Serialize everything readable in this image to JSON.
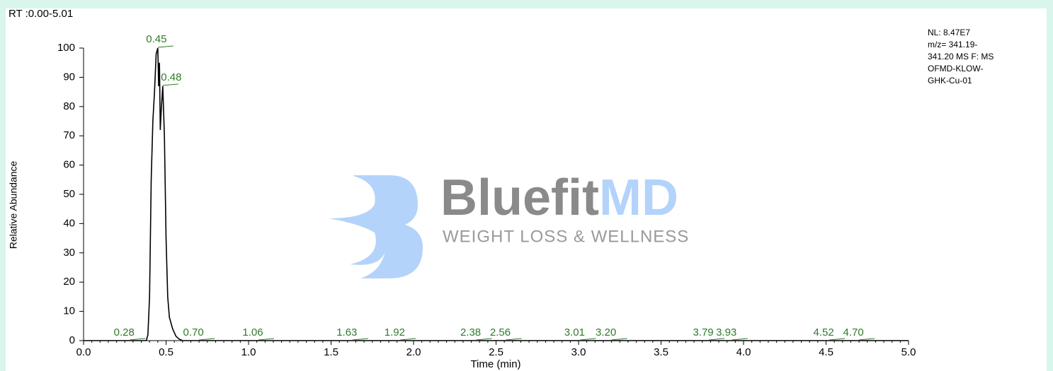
{
  "chart_data": {
    "type": "line",
    "header": "RT :0.00-5.01",
    "info": [
      "NL: 8.47E7",
      "m/z= 341.19-",
      "341.20 MS  F: MS",
      "OFMD-KLOW-",
      "GHK-Cu-01"
    ],
    "watermark": {
      "brand_a": "Bluefit",
      "brand_b": "MD",
      "tagline": "WEIGHT LOSS & WELLNESS"
    },
    "xlabel": "Time (min)",
    "ylabel": "Relative Abundance",
    "color": "#000000",
    "annotation_color": "#2f7a2a",
    "x": [
      0,
      0.38,
      0.39,
      0.4,
      0.41,
      0.42,
      0.43,
      0.44,
      0.45,
      0.455,
      0.46,
      0.465,
      0.47,
      0.48,
      0.49,
      0.5,
      0.51,
      0.52,
      0.54,
      0.56,
      0.58,
      0.6,
      5.0
    ],
    "values": [
      0,
      0,
      2,
      15,
      55,
      75,
      85,
      98,
      100,
      87,
      95,
      72,
      78,
      87,
      70,
      35,
      15,
      8,
      4,
      1.5,
      0.5,
      0,
      0
    ],
    "annotations": [
      {
        "x": 0.45,
        "y": 100,
        "label": "0.45"
      },
      {
        "x": 0.48,
        "y": 87,
        "label": "0.48"
      },
      {
        "x": 0.28,
        "y": 0,
        "label": "0.28"
      },
      {
        "x": 0.7,
        "y": 0,
        "label": "0.70"
      },
      {
        "x": 1.06,
        "y": 0,
        "label": "1.06"
      },
      {
        "x": 1.63,
        "y": 0,
        "label": "1.63"
      },
      {
        "x": 1.92,
        "y": 0,
        "label": "1.92"
      },
      {
        "x": 2.38,
        "y": 0,
        "label": "2.38"
      },
      {
        "x": 2.56,
        "y": 0,
        "label": "2.56"
      },
      {
        "x": 3.01,
        "y": 0,
        "label": "3.01"
      },
      {
        "x": 3.2,
        "y": 0,
        "label": "3.20"
      },
      {
        "x": 3.79,
        "y": 0,
        "label": "3.79"
      },
      {
        "x": 3.93,
        "y": 0,
        "label": "3.93"
      },
      {
        "x": 4.52,
        "y": 0,
        "label": "4.52"
      },
      {
        "x": 4.7,
        "y": 0,
        "label": "4.70"
      }
    ],
    "xlim": [
      0,
      5
    ],
    "ylim": [
      0,
      100
    ],
    "xticks": [
      {
        "value": 0,
        "label": "0.0"
      },
      {
        "value": 0.5,
        "label": "0.5"
      },
      {
        "value": 1,
        "label": "1.0"
      },
      {
        "value": 1.5,
        "label": "1.5"
      },
      {
        "value": 2,
        "label": "2.0"
      },
      {
        "value": 2.5,
        "label": "2.5"
      },
      {
        "value": 3,
        "label": "3.0"
      },
      {
        "value": 3.5,
        "label": "3.5"
      },
      {
        "value": 4,
        "label": "4.0"
      },
      {
        "value": 4.5,
        "label": "4.5"
      },
      {
        "value": 5,
        "label": "5.0"
      }
    ],
    "yticks": [
      0,
      10,
      20,
      30,
      40,
      50,
      60,
      70,
      80,
      90,
      100
    ]
  }
}
